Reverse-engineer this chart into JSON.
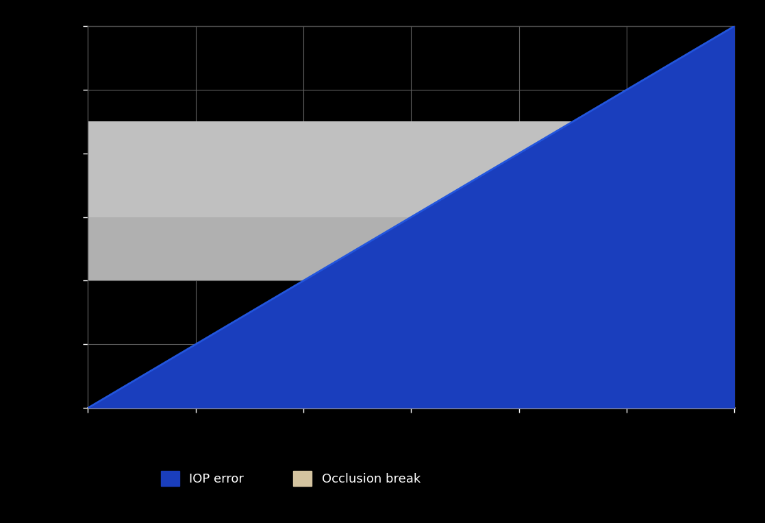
{
  "title": "",
  "xlabel": "",
  "ylabel": "",
  "background_color": "#000000",
  "plot_bg_color": "#000000",
  "line_color": "#1a3ebd",
  "xmin": 0,
  "xmax": 6,
  "ymin": 0,
  "ymax": 6,
  "gray_band_upper_ymin": 3.0,
  "gray_band_upper_ymax": 4.5,
  "gray_band_lower_ymin": 2.0,
  "gray_band_lower_ymax": 3.0,
  "gray_band_xmin": 0,
  "gray_band_xmax": 5.6,
  "gray_color_upper": "#c0c0c0",
  "gray_color_lower": "#b0b0b0",
  "xaxis_line_color": "#d4c4a0",
  "legend_line_label": "IOP error",
  "legend_band_label": "Occlusion break",
  "grid_color": "#606060",
  "tick_color": "#ffffff",
  "num_xticks": 7,
  "num_yticks": 7,
  "line_x": [
    0,
    6
  ],
  "line_y": [
    0,
    6
  ],
  "spine_color": "#505050"
}
